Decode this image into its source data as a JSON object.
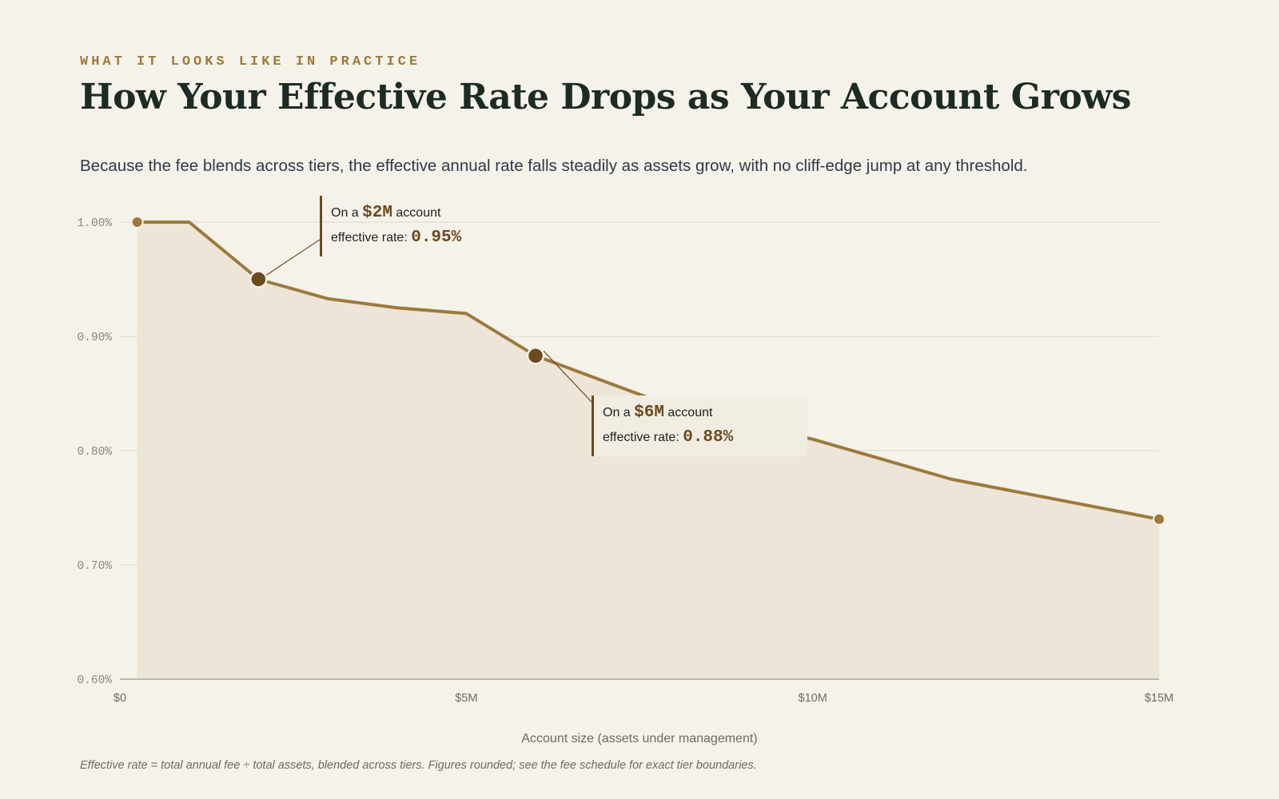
{
  "header": {
    "eyebrow": "WHAT IT LOOKS LIKE IN PRACTICE",
    "title": "How Your Effective Rate Drops as Your Account Grows",
    "subtitle": "Because the fee blends across tiers, the effective annual rate falls steadily as assets grow, with no cliff-edge jump at any threshold."
  },
  "footnote": "Effective rate = total annual fee ÷ total assets, blended across tiers. Figures rounded; see the fee schedule for exact tier boundaries.",
  "colors": {
    "line": "#9c7a3c",
    "area": "#ede5d8",
    "highlight": "#6b4a1f",
    "grid": "#e2ddd2",
    "axis": "#a8a49c"
  },
  "callouts": [
    {
      "prefix": "On a",
      "amount": "$2M",
      "suffix": "account",
      "rate_label": "effective rate:",
      "rate": "0.95%",
      "x": 2,
      "y": 0.95
    },
    {
      "prefix": "On a",
      "amount": "$6M",
      "suffix": "account",
      "rate_label": "effective rate:",
      "rate": "0.88%",
      "x": 6,
      "y": 0.883
    }
  ],
  "chart_data": {
    "type": "area",
    "title": "How Your Effective Rate Drops as Your Account Grows",
    "xlabel": "Account size (assets under management)",
    "ylabel": "",
    "xlim": [
      0,
      15
    ],
    "ylim": [
      0.6,
      1.0
    ],
    "x_ticks": [
      0,
      5,
      10,
      15
    ],
    "x_tick_labels": [
      "$0",
      "$5M",
      "$10M",
      "$15M"
    ],
    "y_ticks": [
      0.6,
      0.7,
      0.8,
      0.9,
      1.0
    ],
    "y_tick_labels": [
      "0.60%",
      "0.70%",
      "0.80%",
      "0.90%",
      "1.00%"
    ],
    "grid": true,
    "series": [
      {
        "name": "",
        "x": [
          0.25,
          1,
          2,
          3,
          4,
          5,
          6,
          8,
          10,
          12,
          15
        ],
        "y": [
          1.0,
          1.0,
          0.95,
          0.933,
          0.925,
          0.92,
          0.883,
          0.838,
          0.81,
          0.775,
          0.74
        ]
      }
    ]
  }
}
